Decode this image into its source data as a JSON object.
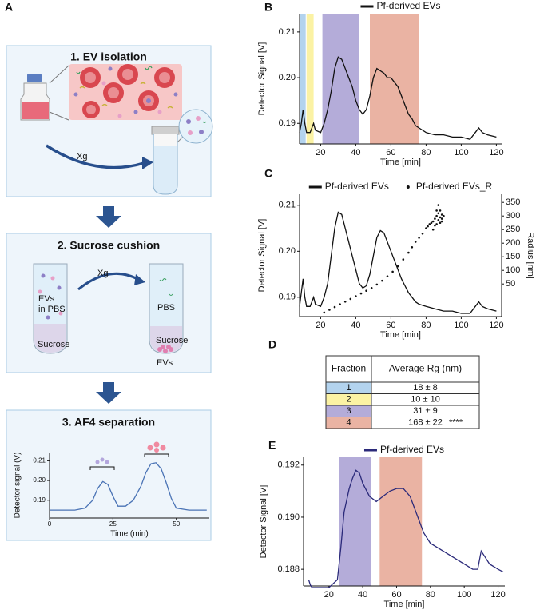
{
  "panel_labels": [
    "A",
    "B",
    "C",
    "D",
    "E"
  ],
  "schematic": {
    "step1": {
      "title": "1. EV isolation",
      "force": "Xg"
    },
    "step2": {
      "title": "2. Sucrose cushion",
      "force": "Xg",
      "before": {
        "line1": "EVs",
        "line2": "in PBS",
        "bottom": "Sucrose"
      },
      "after": {
        "top": "PBS",
        "bottom": "Sucrose",
        "pellet": "EVs"
      }
    },
    "step3": {
      "title": "3. AF4 separation"
    }
  },
  "chart_data": [
    {
      "type": "line",
      "xlabel": "Time (min)",
      "ylabel": "Detector signal (V)",
      "xlim": [
        0,
        63
      ],
      "ylim": [
        0.181,
        0.2142
      ],
      "xticks": [
        0,
        25,
        50
      ],
      "yticks": [
        0.19,
        {
          "value": 0.2,
          "label": "0.20"
        },
        0.21
      ],
      "series": [
        {
          "color": "#4a73b5",
          "x": [
            0,
            5,
            10,
            14,
            17,
            19,
            21,
            23,
            25,
            27,
            30,
            33,
            36,
            38,
            40,
            42,
            44,
            46,
            48,
            50,
            55,
            62
          ],
          "values": [
            0.185,
            0.185,
            0.185,
            0.186,
            0.19,
            0.196,
            0.1995,
            0.198,
            0.192,
            0.187,
            0.187,
            0.19,
            0.197,
            0.204,
            0.2085,
            0.209,
            0.206,
            0.199,
            0.191,
            0.186,
            0.185,
            0.185
          ]
        }
      ]
    },
    {
      "type": "line",
      "xlabel": "Time [min]",
      "ylabel": "Detector Signal [V]",
      "legend": "top",
      "xlim": [
        8,
        123
      ],
      "ylim": [
        0.1855,
        0.214
      ],
      "xticks": [
        20,
        40,
        60,
        80,
        100,
        120
      ],
      "yticks": [
        0.19,
        {
          "value": 0.2,
          "label": "0.20"
        },
        0.21
      ],
      "bands": [
        {
          "x": [
            8,
            11.5
          ],
          "color": "#b3d3ee"
        },
        {
          "x": [
            12,
            16
          ],
          "color": "#fbf2a4"
        },
        {
          "x": [
            21,
            42
          ],
          "color": "#b4acd9"
        },
        {
          "x": [
            48,
            76
          ],
          "color": "#eab3a3"
        }
      ],
      "series": [
        {
          "name": "Pf-derived EVs",
          "color": "#111111",
          "x": [
            8,
            9,
            10,
            11,
            12,
            14,
            16,
            17,
            20,
            22,
            24,
            26,
            28,
            30,
            32,
            34,
            36,
            38,
            40,
            42,
            44,
            46,
            48,
            50,
            52,
            54,
            56,
            58,
            60,
            62,
            64,
            66,
            68,
            70,
            72,
            74,
            76,
            80,
            85,
            90,
            95,
            100,
            105,
            108,
            110,
            112,
            115,
            120
          ],
          "values": [
            0.188,
            0.19,
            0.193,
            0.19,
            0.188,
            0.188,
            0.19,
            0.1885,
            0.188,
            0.19,
            0.193,
            0.197,
            0.202,
            0.2045,
            0.204,
            0.202,
            0.2,
            0.198,
            0.195,
            0.193,
            0.192,
            0.193,
            0.196,
            0.2,
            0.202,
            0.2015,
            0.201,
            0.2,
            0.2,
            0.199,
            0.198,
            0.196,
            0.194,
            0.192,
            0.191,
            0.1895,
            0.189,
            0.188,
            0.1875,
            0.1875,
            0.187,
            0.187,
            0.1865,
            0.188,
            0.189,
            0.188,
            0.1875,
            0.187
          ]
        }
      ]
    },
    {
      "type": "combo",
      "xlabel": "Time [min]",
      "ylabel": "Detector Signal [V]",
      "y2label": "Radius [nm]",
      "legend": "top",
      "xlim": [
        8,
        123
      ],
      "ylim": [
        0.1858,
        0.2124
      ],
      "y2lim": [
        -70,
        380
      ],
      "xticks": [
        20,
        40,
        60,
        80,
        100,
        120
      ],
      "yticks": [
        0.19,
        {
          "value": 0.2,
          "label": "0.20"
        },
        0.21
      ],
      "y2ticks": [
        50,
        100,
        150,
        200,
        250,
        300,
        350
      ],
      "series": [
        {
          "name": "Pf-derived EVs",
          "type": "line",
          "color": "#111111",
          "x": [
            8,
            9,
            10,
            11,
            12,
            14,
            16,
            17,
            20,
            22,
            24,
            26,
            28,
            30,
            32,
            34,
            36,
            38,
            40,
            42,
            44,
            46,
            48,
            50,
            52,
            54,
            56,
            58,
            60,
            62,
            64,
            66,
            68,
            70,
            72,
            74,
            76,
            80,
            85,
            90,
            95,
            100,
            105,
            108,
            110,
            112,
            115,
            120
          ],
          "values": [
            0.188,
            0.191,
            0.194,
            0.19,
            0.188,
            0.188,
            0.19,
            0.1885,
            0.188,
            0.19,
            0.193,
            0.199,
            0.205,
            0.2085,
            0.208,
            0.205,
            0.202,
            0.199,
            0.196,
            0.193,
            0.192,
            0.1925,
            0.195,
            0.199,
            0.203,
            0.2045,
            0.204,
            0.202,
            0.2,
            0.198,
            0.196,
            0.194,
            0.1925,
            0.191,
            0.19,
            0.189,
            0.1885,
            0.188,
            0.1875,
            0.187,
            0.187,
            0.1865,
            0.1865,
            0.188,
            0.189,
            0.188,
            0.1875,
            0.187
          ]
        },
        {
          "name": "Pf-derived EVs_R",
          "type": "scatter",
          "axis": "y2",
          "color": "#111111",
          "x": [
            22,
            25,
            28,
            31,
            34,
            37,
            40,
            43,
            46,
            49,
            52,
            55,
            58,
            61,
            64,
            67,
            70,
            72,
            74,
            76,
            78,
            80,
            81,
            82,
            83,
            84,
            85,
            86,
            86,
            87,
            87,
            88,
            88,
            89,
            89,
            90,
            84,
            85,
            86,
            87,
            88,
            89
          ],
          "values": [
            -55,
            -45,
            -35,
            -25,
            -15,
            -5,
            5,
            15,
            25,
            35,
            48,
            62,
            78,
            95,
            115,
            140,
            165,
            185,
            205,
            220,
            235,
            255,
            262,
            270,
            275,
            280,
            290,
            300,
            270,
            310,
            285,
            320,
            295,
            305,
            280,
            300,
            250,
            265,
            320,
            340,
            275,
            290
          ]
        }
      ]
    },
    {
      "type": "line",
      "xlabel": "Time [min]",
      "ylabel": "Detector Signal [V]",
      "legend": "top",
      "xlim": [
        5,
        124
      ],
      "ylim": [
        0.18736,
        0.1923
      ],
      "xticks": [
        20,
        40,
        60,
        80,
        100,
        120
      ],
      "yticks": [
        {
          "value": 0.188,
          "label": "0.188"
        },
        {
          "value": 0.19,
          "label": "0.190"
        },
        {
          "value": 0.192,
          "label": "0.192"
        }
      ],
      "bands": [
        {
          "x": [
            26,
            45
          ],
          "color": "#b4acd9"
        },
        {
          "x": [
            50,
            75
          ],
          "color": "#eab3a3"
        }
      ],
      "series": [
        {
          "name": "Pf-derived EVs",
          "color": "#2b2a7a",
          "x": [
            8,
            9,
            10,
            15,
            20,
            25,
            27,
            29,
            32,
            34,
            36,
            38,
            40,
            44,
            48,
            52,
            56,
            60,
            64,
            68,
            72,
            76,
            80,
            85,
            90,
            95,
            100,
            105,
            108,
            110,
            112,
            115,
            120,
            123
          ],
          "values": [
            0.1876,
            0.1874,
            0.1873,
            0.1873,
            0.1873,
            0.1876,
            0.1888,
            0.1902,
            0.1911,
            0.1915,
            0.1918,
            0.1917,
            0.1913,
            0.1908,
            0.1906,
            0.1908,
            0.191,
            0.1911,
            0.1911,
            0.1908,
            0.1901,
            0.1894,
            0.189,
            0.1888,
            0.1886,
            0.1884,
            0.1882,
            0.188,
            0.188,
            0.1887,
            0.1885,
            0.1882,
            0.188,
            0.1879
          ]
        }
      ]
    }
  ],
  "table": {
    "header": [
      "Fraction",
      "Average Rg (nm)"
    ],
    "rows": [
      {
        "fraction": "1",
        "rg": "18 ± 8",
        "color": "#b3d3ee"
      },
      {
        "fraction": "2",
        "rg": "10 ± 10",
        "color": "#fbf2a4"
      },
      {
        "fraction": "3",
        "rg": "31 ± 9",
        "color": "#b4acd9"
      },
      {
        "fraction": "4",
        "rg": "168 ± 22",
        "color": "#eab3a3",
        "significance": "****"
      }
    ]
  }
}
